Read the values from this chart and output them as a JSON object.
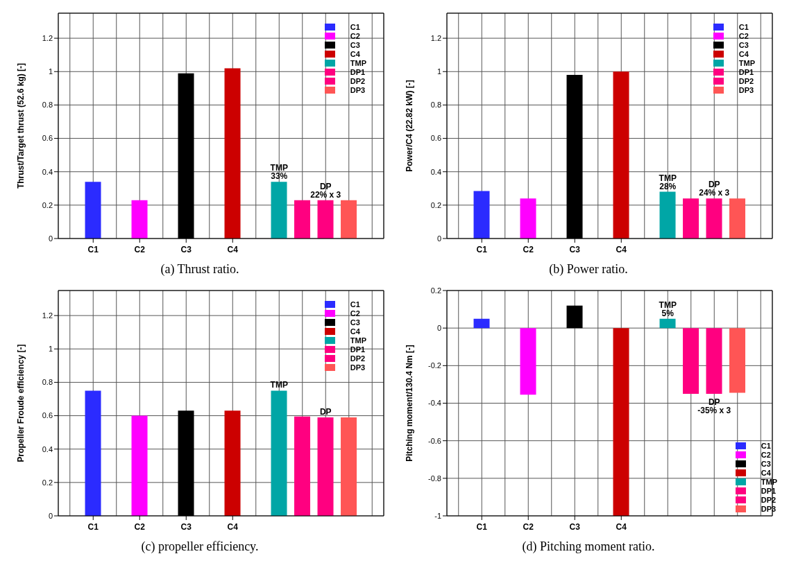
{
  "chart_data": [
    {
      "type": "bar",
      "ylabel": "Thrust/Target thrust (52.6 kg)  [-]",
      "categories": [
        null,
        "C1",
        null,
        "C2",
        null,
        "C3",
        null,
        "C4",
        null,
        null,
        null,
        null,
        null,
        null
      ],
      "ylim": [
        0,
        1.35
      ],
      "yticks": [
        0,
        0.2,
        0.4,
        0.6,
        0.8,
        1,
        1.2
      ],
      "grid": true,
      "legend": "top right",
      "series": [
        {
          "name": "C1",
          "color": "#2b2bff",
          "values": [
            null,
            0.34,
            null,
            null,
            null,
            null,
            null,
            null,
            null,
            null,
            null,
            null,
            null,
            null
          ]
        },
        {
          "name": "C2",
          "color": "#ff00ff",
          "values": [
            null,
            null,
            null,
            0.23,
            null,
            null,
            null,
            null,
            null,
            null,
            null,
            null,
            null,
            null
          ]
        },
        {
          "name": "C3",
          "color": "#000000",
          "values": [
            null,
            null,
            null,
            null,
            null,
            0.99,
            null,
            null,
            null,
            null,
            null,
            null,
            null,
            null
          ]
        },
        {
          "name": "C4",
          "color": "#cc0000",
          "values": [
            null,
            null,
            null,
            null,
            null,
            null,
            null,
            1.02,
            null,
            null,
            null,
            null,
            null,
            null
          ]
        },
        {
          "name": "TMP",
          "color": "#00a6a6",
          "values": [
            null,
            null,
            null,
            null,
            null,
            null,
            null,
            null,
            null,
            0.34,
            null,
            null,
            null,
            null
          ]
        },
        {
          "name": "DP1",
          "color": "#ff0080",
          "values": [
            null,
            null,
            null,
            null,
            null,
            null,
            null,
            null,
            null,
            null,
            0.23,
            null,
            null,
            null
          ]
        },
        {
          "name": "DP2",
          "color": "#ff0080",
          "values": [
            null,
            null,
            null,
            null,
            null,
            null,
            null,
            null,
            null,
            null,
            null,
            0.23,
            null,
            null
          ]
        },
        {
          "name": "DP3",
          "color": "#ff5555",
          "values": [
            null,
            null,
            null,
            null,
            null,
            null,
            null,
            null,
            null,
            null,
            null,
            null,
            0.23,
            null
          ]
        }
      ],
      "annotations": [
        {
          "text": "TMP\n33%",
          "y": 0.34
        },
        {
          "text": "DP\n22% x 3",
          "y": 0.23
        },
        "(a) Thrust ratio."
      ]
    },
    {
      "type": "bar",
      "ylabel": "Power/C4 (22.82 kW)  [-]",
      "categories": [
        null,
        "C1",
        null,
        "C2",
        null,
        "C3",
        null,
        "C4",
        null,
        null,
        null,
        null,
        null,
        null
      ],
      "ylim": [
        0,
        1.35
      ],
      "yticks": [
        0,
        0.2,
        0.4,
        0.6,
        0.8,
        1,
        1.2
      ],
      "grid": true,
      "legend": "top right",
      "series": [
        {
          "name": "C1",
          "color": "#2b2bff",
          "values": [
            null,
            0.285,
            null,
            null,
            null,
            null,
            null,
            null,
            null,
            null,
            null,
            null,
            null,
            null
          ]
        },
        {
          "name": "C2",
          "color": "#ff00ff",
          "values": [
            null,
            null,
            null,
            0.24,
            null,
            null,
            null,
            null,
            null,
            null,
            null,
            null,
            null,
            null
          ]
        },
        {
          "name": "C3",
          "color": "#000000",
          "values": [
            null,
            null,
            null,
            null,
            null,
            0.98,
            null,
            null,
            null,
            null,
            null,
            null,
            null,
            null
          ]
        },
        {
          "name": "C4",
          "color": "#cc0000",
          "values": [
            null,
            null,
            null,
            null,
            null,
            null,
            null,
            1.0,
            null,
            null,
            null,
            null,
            null,
            null
          ]
        },
        {
          "name": "TMP",
          "color": "#00a6a6",
          "values": [
            null,
            null,
            null,
            null,
            null,
            null,
            null,
            null,
            null,
            0.28,
            null,
            null,
            null,
            null
          ]
        },
        {
          "name": "DP1",
          "color": "#ff0080",
          "values": [
            null,
            null,
            null,
            null,
            null,
            null,
            null,
            null,
            null,
            null,
            0.24,
            null,
            null,
            null
          ]
        },
        {
          "name": "DP2",
          "color": "#ff0080",
          "values": [
            null,
            null,
            null,
            null,
            null,
            null,
            null,
            null,
            null,
            null,
            null,
            0.24,
            null,
            null
          ]
        },
        {
          "name": "DP3",
          "color": "#ff5555",
          "values": [
            null,
            null,
            null,
            null,
            null,
            null,
            null,
            null,
            null,
            null,
            null,
            null,
            0.24,
            null
          ]
        }
      ],
      "annotations": [
        {
          "text": "TMP\n28%",
          "y": 0.28
        },
        {
          "text": "DP\n24% x 3",
          "y": 0.24
        },
        "(b) Power ratio."
      ]
    },
    {
      "type": "bar",
      "ylabel": "Propeller Froude efficiency [-]",
      "categories": [
        null,
        "C1",
        null,
        "C2",
        null,
        "C3",
        null,
        "C4",
        null,
        null,
        null,
        null,
        null,
        null
      ],
      "ylim": [
        0,
        1.35
      ],
      "yticks": [
        0,
        0.2,
        0.4,
        0.6,
        0.8,
        1,
        1.2
      ],
      "grid": true,
      "legend": "top right",
      "series": [
        {
          "name": "C1",
          "color": "#2b2bff",
          "values": [
            null,
            0.75,
            null,
            null,
            null,
            null,
            null,
            null,
            null,
            null,
            null,
            null,
            null,
            null
          ]
        },
        {
          "name": "C2",
          "color": "#ff00ff",
          "values": [
            null,
            null,
            null,
            0.6,
            null,
            null,
            null,
            null,
            null,
            null,
            null,
            null,
            null,
            null
          ]
        },
        {
          "name": "C3",
          "color": "#000000",
          "values": [
            null,
            null,
            null,
            null,
            null,
            0.63,
            null,
            null,
            null,
            null,
            null,
            null,
            null,
            null
          ]
        },
        {
          "name": "C4",
          "color": "#cc0000",
          "values": [
            null,
            null,
            null,
            null,
            null,
            null,
            null,
            0.63,
            null,
            null,
            null,
            null,
            null,
            null
          ]
        },
        {
          "name": "TMP",
          "color": "#00a6a6",
          "values": [
            null,
            null,
            null,
            null,
            null,
            null,
            null,
            null,
            null,
            0.75,
            null,
            null,
            null,
            null
          ]
        },
        {
          "name": "DP1",
          "color": "#ff0080",
          "values": [
            null,
            null,
            null,
            null,
            null,
            null,
            null,
            null,
            null,
            null,
            0.595,
            null,
            null,
            null
          ]
        },
        {
          "name": "DP2",
          "color": "#ff0080",
          "values": [
            null,
            null,
            null,
            null,
            null,
            null,
            null,
            null,
            null,
            null,
            null,
            0.59,
            null,
            null
          ]
        },
        {
          "name": "DP3",
          "color": "#ff5555",
          "values": [
            null,
            null,
            null,
            null,
            null,
            null,
            null,
            null,
            null,
            null,
            null,
            null,
            0.59,
            null
          ]
        }
      ],
      "annotations": [
        {
          "text": "TMP",
          "y": 0.75
        },
        {
          "text": "DP",
          "y": 0.59
        },
        "(c) propeller efficiency."
      ]
    },
    {
      "type": "bar",
      "ylabel": "Pitching moment/130.4 Nm  [-]",
      "categories": [
        null,
        "C1",
        null,
        "C2",
        null,
        "C3",
        null,
        "C4",
        null,
        null,
        null,
        null,
        null,
        null
      ],
      "ylim": [
        -1,
        0.2
      ],
      "yticks": [
        -1,
        -0.8,
        -0.6,
        -0.4,
        -0.2,
        0,
        0.2
      ],
      "grid": true,
      "legend": "bottom right",
      "series": [
        {
          "name": "C1",
          "color": "#2b2bff",
          "values": [
            null,
            0.05,
            null,
            null,
            null,
            null,
            null,
            null,
            null,
            null,
            null,
            null,
            null,
            null
          ]
        },
        {
          "name": "C2",
          "color": "#ff00ff",
          "values": [
            null,
            null,
            null,
            -0.355,
            null,
            null,
            null,
            null,
            null,
            null,
            null,
            null,
            null,
            null
          ]
        },
        {
          "name": "C3",
          "color": "#000000",
          "values": [
            null,
            null,
            null,
            null,
            null,
            0.12,
            null,
            null,
            null,
            null,
            null,
            null,
            null,
            null
          ]
        },
        {
          "name": "C4",
          "color": "#cc0000",
          "values": [
            null,
            null,
            null,
            null,
            null,
            null,
            null,
            -1.0,
            null,
            null,
            null,
            null,
            null,
            null
          ]
        },
        {
          "name": "TMP",
          "color": "#00a6a6",
          "values": [
            null,
            null,
            null,
            null,
            null,
            null,
            null,
            null,
            null,
            0.05,
            null,
            null,
            null,
            null
          ]
        },
        {
          "name": "DP1",
          "color": "#ff0080",
          "values": [
            null,
            null,
            null,
            null,
            null,
            null,
            null,
            null,
            null,
            null,
            -0.35,
            null,
            null,
            null
          ]
        },
        {
          "name": "DP2",
          "color": "#ff0080",
          "values": [
            null,
            null,
            null,
            null,
            null,
            null,
            null,
            null,
            null,
            null,
            null,
            -0.35,
            null,
            null
          ]
        },
        {
          "name": "DP3",
          "color": "#ff5555",
          "values": [
            null,
            null,
            null,
            null,
            null,
            null,
            null,
            null,
            null,
            null,
            null,
            null,
            -0.345,
            null
          ]
        }
      ],
      "annotations": [
        {
          "text": "TMP\n5%",
          "y": 0.05
        },
        {
          "text": "DP\n-35% x 3",
          "y": -0.35
        },
        "(d) Pitching moment ratio."
      ]
    }
  ]
}
